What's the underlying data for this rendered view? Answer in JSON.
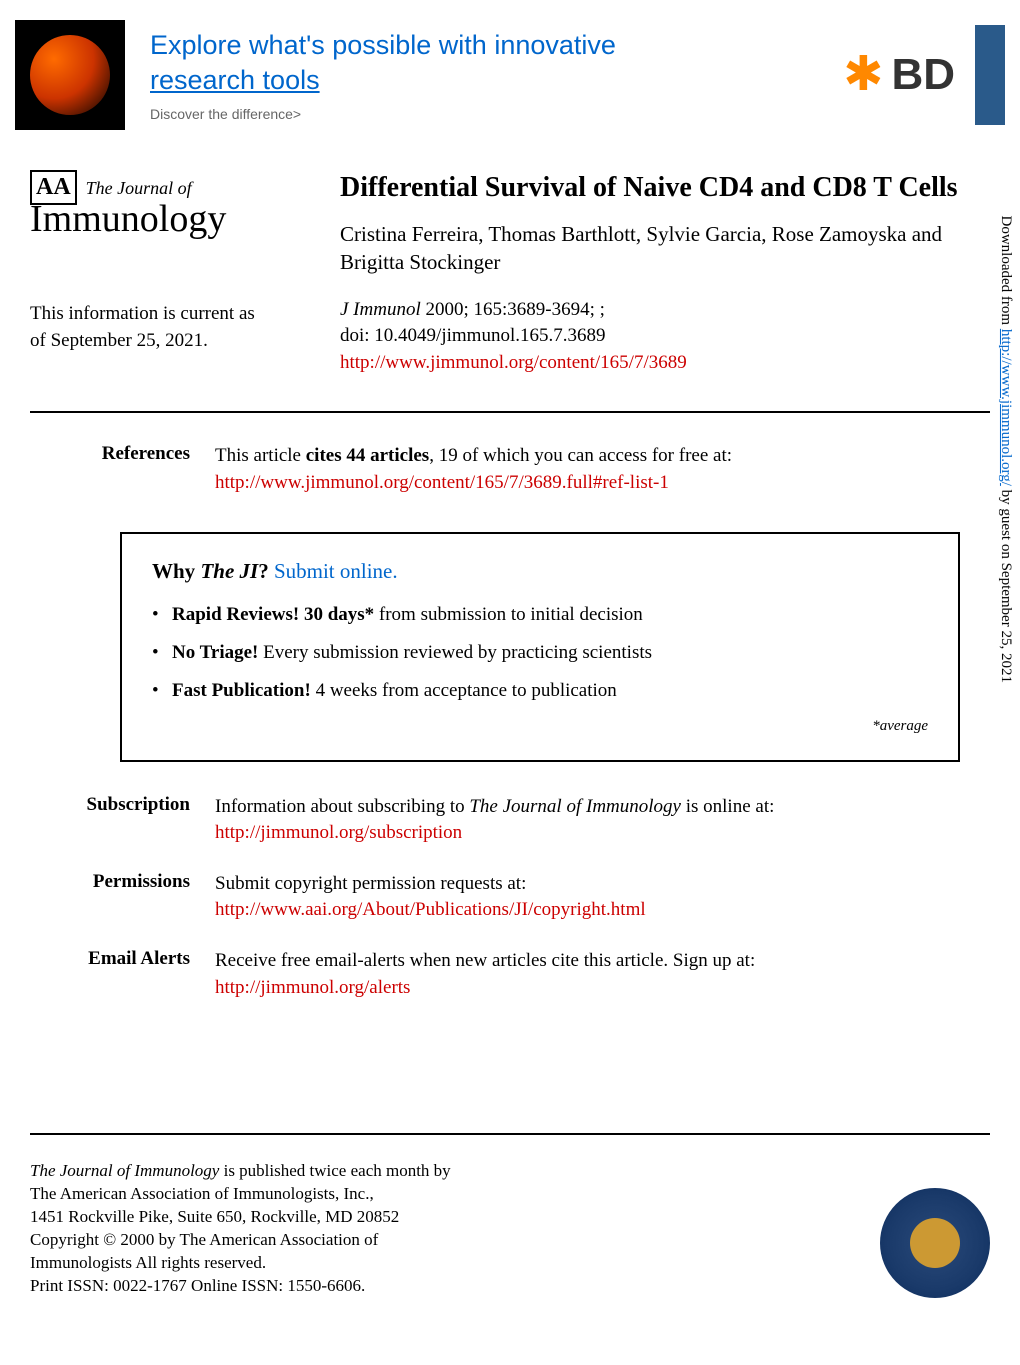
{
  "banner": {
    "title_line1": "Explore what's possible with innovative",
    "title_line2": "research tools",
    "subtitle": "Discover the difference>",
    "bd_text": "BD"
  },
  "journal": {
    "the_journal": "The Journal of",
    "immunology": "Immunology",
    "aa_badge": "AA"
  },
  "current_info": {
    "line1": "This information is current as",
    "line2": "of September 25, 2021."
  },
  "article": {
    "title": "Differential Survival of Naive CD4 and CD8 T Cells",
    "authors": "Cristina Ferreira, Thomas Barthlott, Sylvie Garcia, Rose Zamoyska and Brigitta Stockinger",
    "journal": "J Immunol",
    "year_pages": " 2000; 165:3689-3694; ;",
    "doi": "doi: 10.4049/jimmunol.165.7.3689",
    "url": "http://www.jimmunol.org/content/165/7/3689"
  },
  "references": {
    "label": "References",
    "text_part1": "This article ",
    "text_bold": "cites 44 articles",
    "text_part2": ", 19 of which you can access for free at:",
    "url": "http://www.jimmunol.org/content/165/7/3689.full#ref-list-1"
  },
  "why_box": {
    "why": "Why ",
    "ji": "The JI",
    "question": "? ",
    "submit": "Submit online.",
    "item1_bold": "Rapid Reviews! 30 days*",
    "item1_rest": " from submission to initial decision",
    "item2_bold": "No Triage!",
    "item2_rest": " Every submission reviewed by practicing scientists",
    "item3_bold": "Fast Publication!",
    "item3_rest": " 4 weeks from acceptance to publication",
    "footnote": "*average"
  },
  "subscription": {
    "label": "Subscription",
    "text_part1": "Information about subscribing to ",
    "text_italic": "The Journal of Immunology",
    "text_part2": " is online at:",
    "url": "http://jimmunol.org/subscription"
  },
  "permissions": {
    "label": "Permissions",
    "text": "Submit copyright permission requests at:",
    "url": "http://www.aai.org/About/Publications/JI/copyright.html"
  },
  "email_alerts": {
    "label": "Email Alerts",
    "text": "Receive free email-alerts when new articles cite this article. Sign up at:",
    "url": "http://jimmunol.org/alerts"
  },
  "sidebar": {
    "text_part1": "Downloaded from ",
    "url": "http://www.jimmunol.org/",
    "text_part2": " by guest on September 25, 2021"
  },
  "footer": {
    "line1_italic": "The Journal of Immunology",
    "line1_rest": " is published twice each month by",
    "line2": "The American Association of Immunologists, Inc.,",
    "line3": "1451 Rockville Pike, Suite 650, Rockville, MD 20852",
    "line4": "Copyright © 2000 by The American Association of",
    "line5": "Immunologists All rights reserved.",
    "line6": "Print ISSN: 0022-1767 Online ISSN: 1550-6606."
  }
}
